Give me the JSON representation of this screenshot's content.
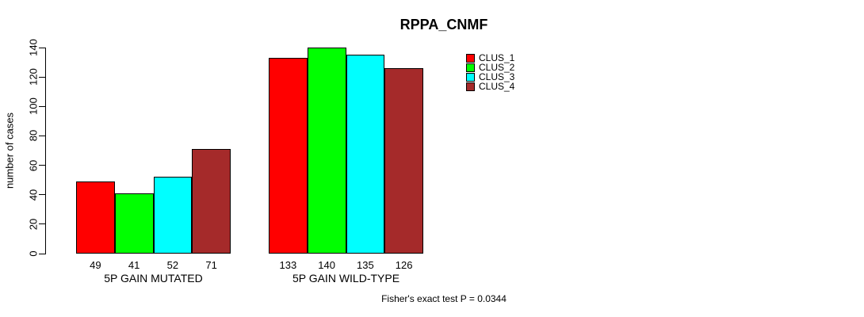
{
  "chart_data": {
    "type": "bar",
    "title": "RPPA_CNMF",
    "ylabel": "number of cases",
    "xlabel": "",
    "ylim": [
      0,
      140
    ],
    "yticks": [
      0,
      20,
      40,
      60,
      80,
      100,
      120,
      140
    ],
    "grid": false,
    "legend_position": "top-right",
    "legend_entries": [
      "CLUS_1",
      "CLUS_2",
      "CLUS_3",
      "CLUS_4"
    ],
    "categories": [
      "5P GAIN MUTATED",
      "5P GAIN WILD-TYPE"
    ],
    "series": [
      {
        "name": "CLUS_1",
        "color": "#FF0000",
        "values": [
          49,
          133
        ]
      },
      {
        "name": "CLUS_2",
        "color": "#00FF00",
        "values": [
          41,
          140
        ]
      },
      {
        "name": "CLUS_3",
        "color": "#00FFFF",
        "values": [
          52,
          135
        ]
      },
      {
        "name": "CLUS_4",
        "color": "#A52A2A",
        "values": [
          71,
          126
        ]
      }
    ],
    "show_bar_values": true,
    "annotation": "Fisher's exact test P = 0.0344",
    "axis_color": "#000000",
    "background_color": "#FFFFFF"
  }
}
